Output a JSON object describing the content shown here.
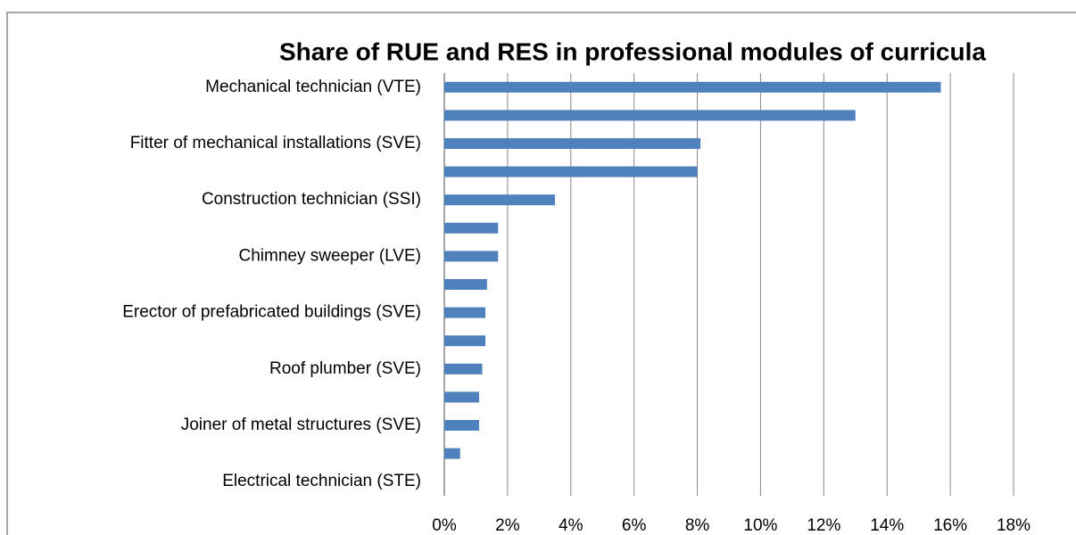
{
  "chart_data": {
    "type": "barh",
    "title": "Share of RUE and RES in professional modules of curricula",
    "categories": [
      "Mechanical technician (VTE)",
      null,
      "Fitter of mechanical installations (SVE)",
      null,
      "Construction technician (SSI)",
      null,
      "Chimney sweeper (LVE)",
      null,
      "Erector of prefabricated buildings (SVE)",
      null,
      "Roof plumber (SVE)",
      null,
      "Joiner of metal structures (SVE)",
      null,
      "Electrical technician (STE)"
    ],
    "values": [
      15.7,
      13.0,
      8.1,
      8.0,
      3.5,
      1.7,
      1.7,
      1.35,
      1.3,
      1.3,
      1.2,
      1.1,
      1.1,
      0.5,
      0
    ],
    "color": "#4f81bd",
    "xlim": [
      0,
      18
    ],
    "xticks": [
      {
        "value": 0,
        "label": "0%"
      },
      {
        "value": 2,
        "label": "2%"
      },
      {
        "value": 4,
        "label": "4%"
      },
      {
        "value": 6,
        "label": "6%"
      },
      {
        "value": 8,
        "label": "8%"
      },
      {
        "value": 10,
        "label": "10%"
      },
      {
        "value": 12,
        "label": "12%"
      },
      {
        "value": 14,
        "label": "14%"
      },
      {
        "value": 16,
        "label": "16%"
      },
      {
        "value": 18,
        "label": "18%"
      }
    ],
    "grid": true
  }
}
